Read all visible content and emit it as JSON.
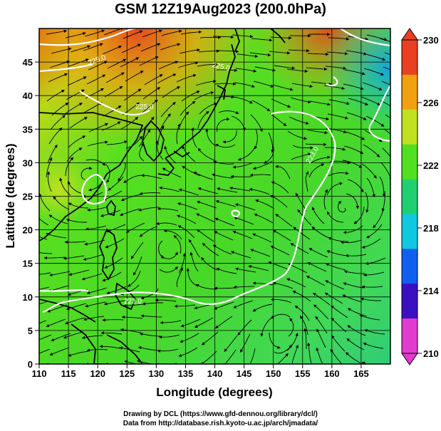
{
  "title": "GSM 12Z19Aug2023 (200.0hPa)",
  "map": {
    "lon_range": [
      110,
      170
    ],
    "lat_range": [
      0,
      50
    ],
    "xlabel": "Longitude (degrees)",
    "ylabel": "Latitude  (degrees)",
    "x_ticks": [
      "110",
      "115",
      "120",
      "125",
      "130",
      "135",
      "140",
      "145",
      "150",
      "155",
      "160",
      "165"
    ],
    "y_ticks": [
      "0",
      "5",
      "10",
      "15",
      "20",
      "25",
      "30",
      "35",
      "40",
      "45"
    ],
    "contour_labels": [
      "225.0",
      "225.0",
      "225.0",
      "223.0",
      "223.0"
    ],
    "grid": true
  },
  "colorbar": {
    "min": 210,
    "max": 230,
    "ticks": [
      "230",
      "226",
      "222",
      "218",
      "214",
      "210"
    ],
    "colors": [
      "#e23bd0",
      "#3a10c0",
      "#1060f0",
      "#10c8e0",
      "#20d070",
      "#50e020",
      "#c0e020",
      "#f0a010",
      "#e84020"
    ]
  },
  "credits": {
    "line1": "Drawing by DCL (https://www.gfd-dennou.org/library/dcl/)",
    "line2": "Data from http://database.rish.kyoto-u.ac.jp/arch/jmadata/"
  }
}
